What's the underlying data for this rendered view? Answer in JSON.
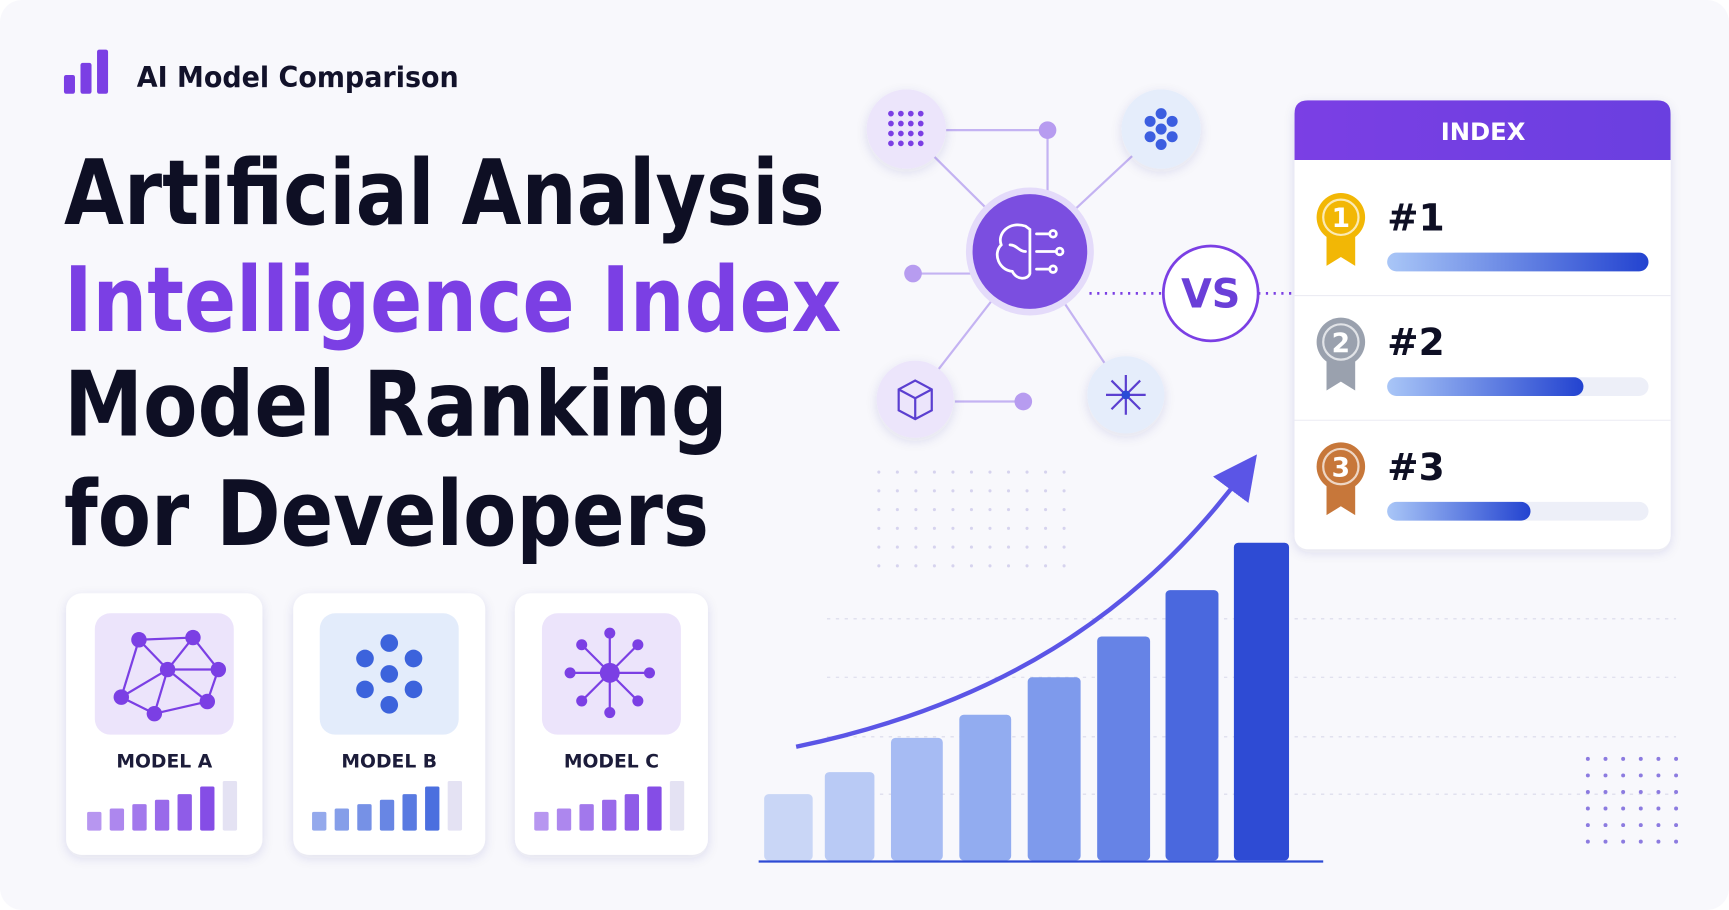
{
  "header": {
    "title": "AI Model Comparison"
  },
  "headline": {
    "lines": [
      "Artificial Analysis",
      "Intelligence Index",
      "Model Ranking",
      "for Developers"
    ]
  },
  "cards": [
    {
      "label": "MODEL A"
    },
    {
      "label": "MODEL B"
    },
    {
      "label": "MODEL C"
    }
  ],
  "comparison": {
    "vs": "VS"
  },
  "index_panel": {
    "title": "INDEX",
    "ranks": [
      {
        "medal": "1",
        "label": "#1"
      },
      {
        "medal": "2",
        "label": "#2"
      },
      {
        "medal": "3",
        "label": "#3"
      }
    ]
  }
}
